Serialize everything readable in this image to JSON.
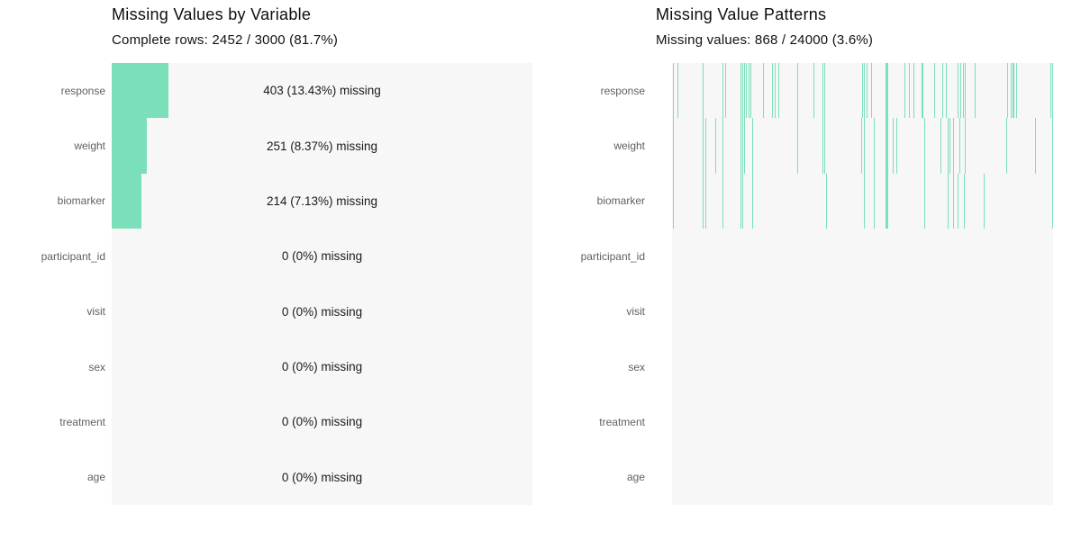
{
  "colors": {
    "accent": "#7BE0B9",
    "plot_background": "#F7F7F7",
    "label_text": "#606060",
    "title_text": "#0D0D0D"
  },
  "chart_data": [
    {
      "type": "bar",
      "orientation": "horizontal",
      "title": "Missing Values by Variable",
      "subtitle": "Complete rows: 2452 / 3000 (81.7%)",
      "categories": [
        "response",
        "weight",
        "biomarker",
        "participant_id",
        "visit",
        "sex",
        "treatment",
        "age"
      ],
      "values": [
        403,
        251,
        214,
        0,
        0,
        0,
        0,
        0
      ],
      "pct_missing": [
        13.43,
        8.37,
        7.13,
        0,
        0,
        0,
        0,
        0
      ],
      "bar_labels": [
        "403 (13.43%) missing",
        "251 (8.37%) missing",
        "214 (7.13%) missing",
        "0 (0%) missing",
        "0 (0%) missing",
        "0 (0%) missing",
        "0 (0%) missing",
        "0 (0%) missing"
      ],
      "xlim": [
        0,
        100
      ],
      "grid": false,
      "legend": "none"
    },
    {
      "type": "heatmap",
      "title": "Missing Value Patterns",
      "subtitle": "Missing values: 868 / 24000 (3.6%)",
      "categories": [
        "response",
        "weight",
        "biomarker",
        "participant_id",
        "visit",
        "sex",
        "treatment",
        "age"
      ],
      "x_axis": "observations (0-423 px bins across 3000 rows)",
      "legend": "none",
      "grid": false,
      "lines": {
        "response": [
          [
            1,
            1
          ],
          [
            6,
            1
          ],
          [
            34,
            1
          ],
          [
            56,
            1
          ],
          [
            59,
            1
          ],
          [
            76,
            1
          ],
          [
            78,
            1
          ],
          [
            80,
            1
          ],
          [
            82,
            1
          ],
          [
            85,
            1
          ],
          [
            87,
            1
          ],
          [
            101,
            1
          ],
          [
            111,
            1
          ],
          [
            114,
            1
          ],
          [
            118,
            1
          ],
          [
            139,
            1
          ],
          [
            157,
            1
          ],
          [
            167,
            1
          ],
          [
            169,
            1
          ],
          [
            211,
            1
          ],
          [
            213,
            1
          ],
          [
            216,
            1
          ],
          [
            221,
            1
          ],
          [
            237,
            3
          ],
          [
            258,
            1
          ],
          [
            263,
            1
          ],
          [
            268,
            1
          ],
          [
            277,
            2
          ],
          [
            291,
            1
          ],
          [
            300,
            1
          ],
          [
            304,
            1
          ],
          [
            317,
            1
          ],
          [
            320,
            1
          ],
          [
            323,
            1
          ],
          [
            325,
            1
          ],
          [
            336,
            1
          ],
          [
            372,
            1
          ],
          [
            376,
            1
          ],
          [
            378,
            2
          ],
          [
            382,
            1
          ],
          [
            420,
            1
          ],
          [
            422,
            1
          ]
        ],
        "weight": [
          [
            1,
            1
          ],
          [
            34,
            1
          ],
          [
            37,
            1
          ],
          [
            48,
            1
          ],
          [
            56,
            1
          ],
          [
            76,
            1
          ],
          [
            78,
            1
          ],
          [
            80,
            1
          ],
          [
            89,
            1
          ],
          [
            139,
            1
          ],
          [
            167,
            1
          ],
          [
            169,
            1
          ],
          [
            210,
            1
          ],
          [
            213,
            1
          ],
          [
            224,
            1
          ],
          [
            237,
            3
          ],
          [
            245,
            1
          ],
          [
            249,
            1
          ],
          [
            280,
            1
          ],
          [
            298,
            1
          ],
          [
            306,
            1
          ],
          [
            308,
            1
          ],
          [
            312,
            1
          ],
          [
            319,
            1
          ],
          [
            325,
            1
          ],
          [
            371,
            1
          ],
          [
            403,
            1
          ],
          [
            422,
            1
          ]
        ],
        "biomarker": [
          [
            1,
            1
          ],
          [
            34,
            1
          ],
          [
            37,
            1
          ],
          [
            56,
            1
          ],
          [
            76,
            1
          ],
          [
            78,
            1
          ],
          [
            89,
            1
          ],
          [
            171,
            1
          ],
          [
            213,
            1
          ],
          [
            224,
            1
          ],
          [
            237,
            3
          ],
          [
            280,
            1
          ],
          [
            306,
            1
          ],
          [
            312,
            1
          ],
          [
            317,
            1
          ],
          [
            324,
            1
          ],
          [
            346,
            1
          ],
          [
            422,
            1
          ]
        ],
        "participant_id": [],
        "visit": [],
        "sex": [],
        "treatment": [],
        "age": []
      }
    }
  ]
}
